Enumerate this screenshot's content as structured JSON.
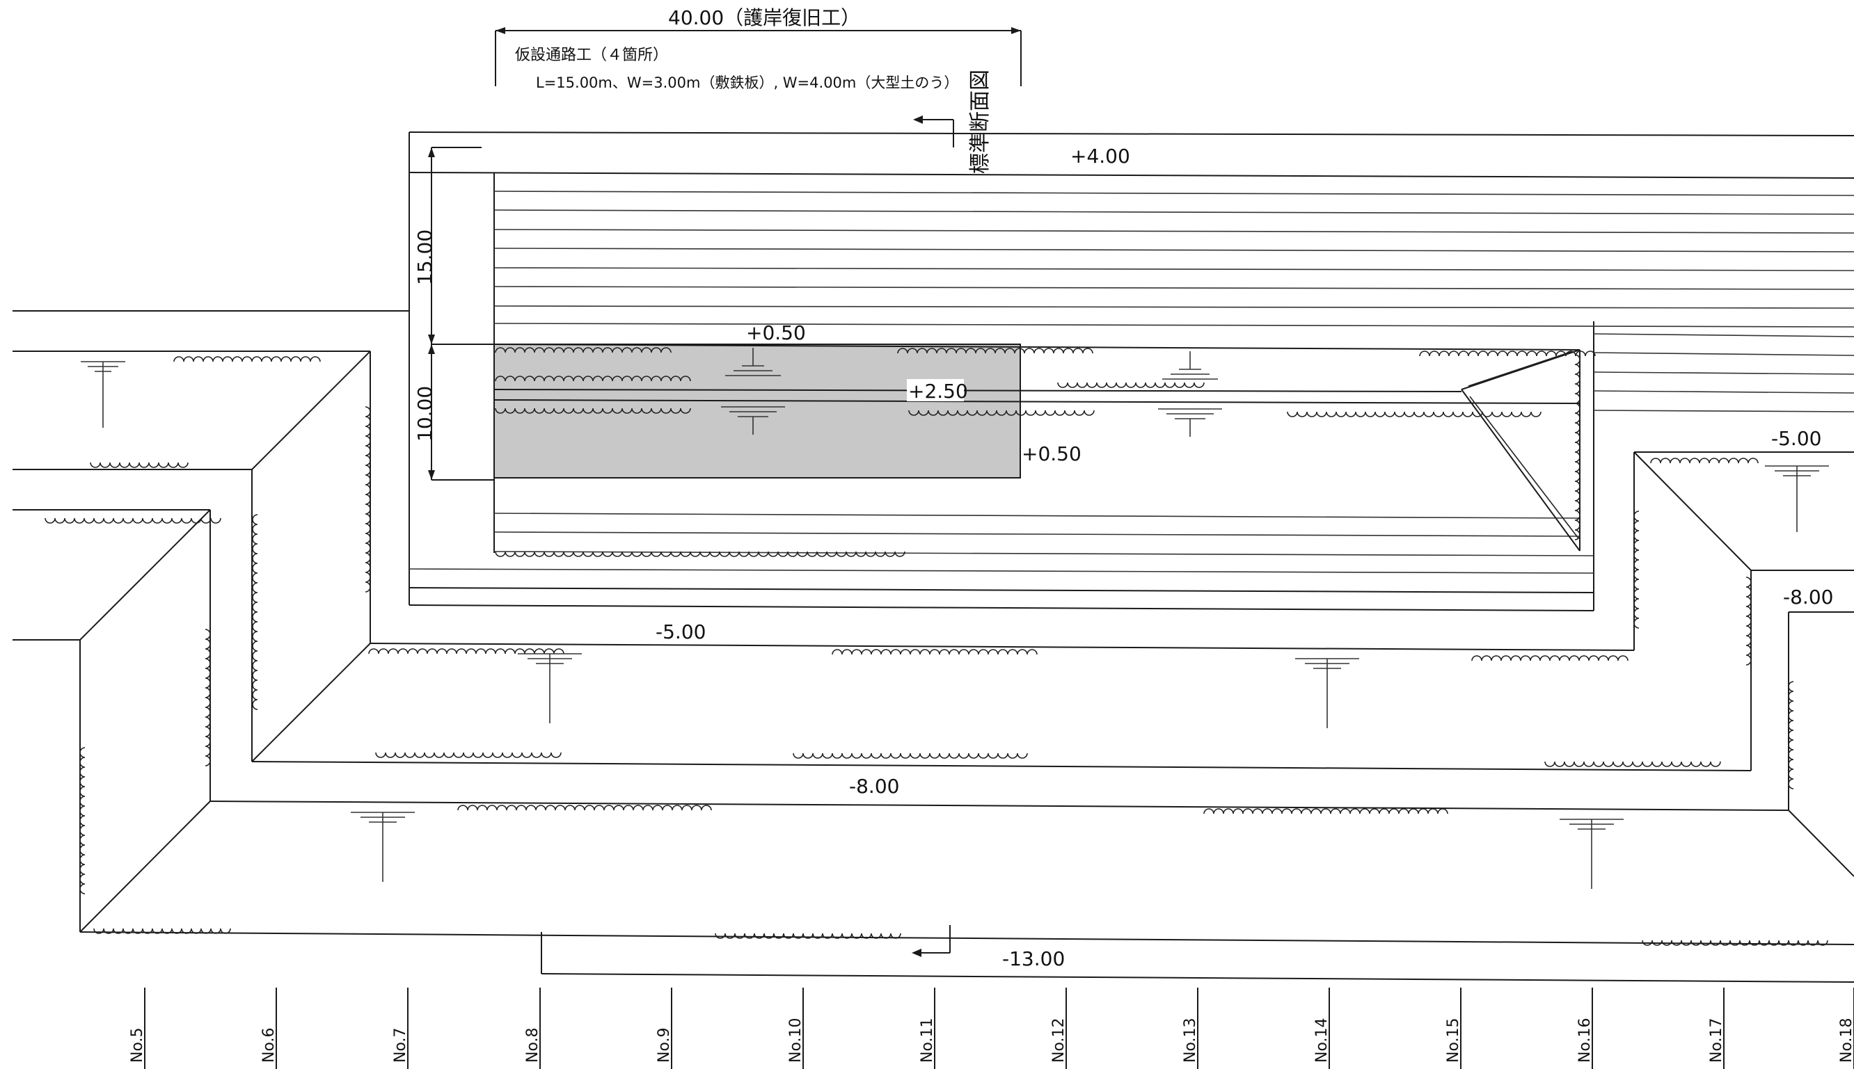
{
  "header": {
    "total_length_label": "40.00（護岸復旧工）",
    "temp_road_title": "仮設通路工（４箇所）",
    "temp_road_spec": "L=15.00m、W=3.00m（敷鉄板）, W=4.00m（大型土のう）"
  },
  "section_label": "標準断面図",
  "dimensions": {
    "length_15": "15.00",
    "width_10": "10.00"
  },
  "elevations": {
    "top_road": "+4.00",
    "plus_050_a": "+0.50",
    "plus_250": "+2.50",
    "plus_050_b": "+0.50",
    "minus_500_left": "-5.00",
    "minus_500_right": "-5.00",
    "minus_800_center": "-8.00",
    "minus_800_right": "-8.00",
    "minus_1300": "-13.00"
  },
  "stations": [
    "No.5",
    "No.6",
    "No.7",
    "No.8",
    "No.9",
    "No.10",
    "No.11",
    "No.12",
    "No.13",
    "No.14",
    "No.15",
    "No.16",
    "No.17",
    "No.18"
  ],
  "colors": {
    "shaded_area": "#c8c8c8",
    "line": "#1a1a1a"
  }
}
